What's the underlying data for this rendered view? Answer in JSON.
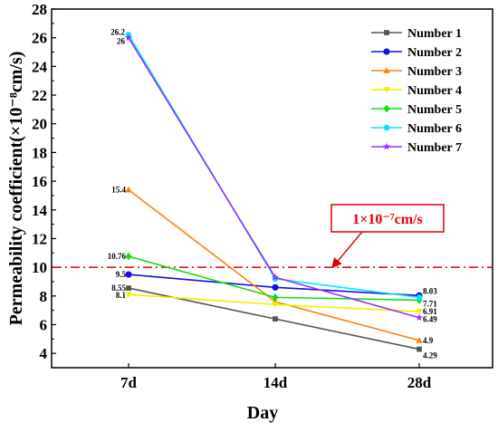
{
  "chart_data": {
    "type": "line",
    "title": "",
    "xlabel": "Day",
    "ylabel": "Permeability coefficient(×10⁻⁸cm/s)",
    "categories": [
      "7d",
      "14d",
      "28d"
    ],
    "ylim": [
      3,
      28
    ],
    "yticks": [
      "4",
      "6",
      "8",
      "10",
      "12",
      "14",
      "16",
      "18",
      "20",
      "22",
      "24",
      "26",
      "28"
    ],
    "grid": false,
    "legend_position": "top-right",
    "series": [
      {
        "name": "Number 1",
        "values": [
          8.55,
          6.4,
          4.29
        ],
        "labels": [
          "8.55",
          "",
          "4.29"
        ],
        "color": "#555555",
        "marker": "square"
      },
      {
        "name": "Number 2",
        "values": [
          9.5,
          8.6,
          8.03
        ],
        "labels": [
          "9.5",
          "",
          "8.03"
        ],
        "color": "#1010e0",
        "marker": "circle"
      },
      {
        "name": "Number 3",
        "values": [
          15.4,
          7.6,
          4.9
        ],
        "labels": [
          "15.4",
          "",
          "4.9"
        ],
        "color": "#ff7f0e",
        "marker": "triangle-up"
      },
      {
        "name": "Number 4",
        "values": [
          8.1,
          7.4,
          6.91
        ],
        "labels": [
          "8.1",
          "",
          "6.91"
        ],
        "color": "#f0f000",
        "marker": "triangle-down"
      },
      {
        "name": "Number 5",
        "values": [
          10.76,
          7.9,
          7.71
        ],
        "labels": [
          "10.76",
          "",
          "7.71"
        ],
        "color": "#10e010",
        "marker": "diamond"
      },
      {
        "name": "Number 6",
        "values": [
          26.2,
          9.2,
          7.9
        ],
        "labels": [
          "26.2",
          "",
          ""
        ],
        "color": "#00e5ff",
        "marker": "hexagon"
      },
      {
        "name": "Number 7",
        "values": [
          26.0,
          9.3,
          6.49
        ],
        "labels": [
          "26",
          "",
          "6.49"
        ],
        "color": "#9b30ff",
        "marker": "star"
      }
    ],
    "reference_line": {
      "value": 10,
      "color": "#e00000",
      "style": "dash-dot"
    },
    "annotation": {
      "text": "1×10⁻⁷cm/s",
      "color": "#e00000"
    }
  }
}
